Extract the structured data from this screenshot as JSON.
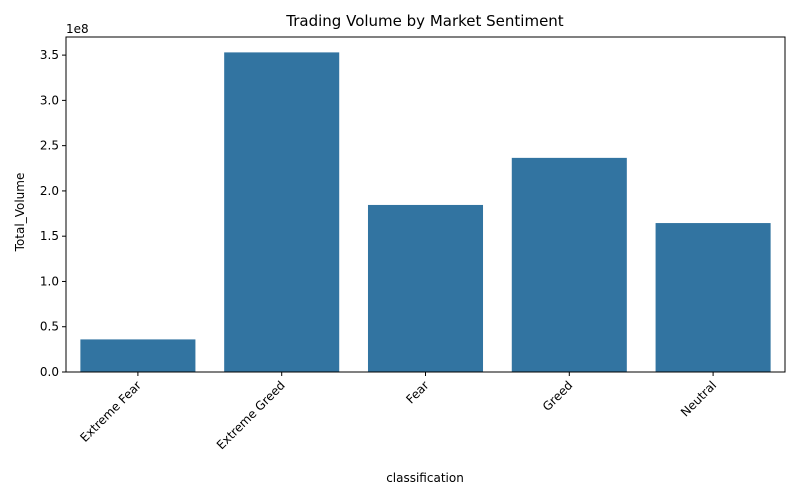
{
  "chart_data": {
    "type": "bar",
    "title": "Trading Volume by Market Sentiment",
    "xlabel": "classification",
    "ylabel": "Total_Volume",
    "y_offset_label": "1e8",
    "y_scale": 100000000,
    "ylim": [
      0,
      370000000
    ],
    "yticks": [
      0,
      50000000,
      100000000,
      150000000,
      200000000,
      250000000,
      300000000,
      350000000
    ],
    "ytick_labels": [
      "0.0",
      "0.5",
      "1.0",
      "1.5",
      "2.0",
      "2.5",
      "3.0",
      "3.5"
    ],
    "categories": [
      "Extreme Fear",
      "Extreme Greed",
      "Fear",
      "Greed",
      "Neutral"
    ],
    "values": [
      36000000,
      353000000,
      184500000,
      236500000,
      164500000
    ],
    "bar_color": "#3274a1",
    "grid": false,
    "legend": "none",
    "xtick_rotation": 45
  }
}
